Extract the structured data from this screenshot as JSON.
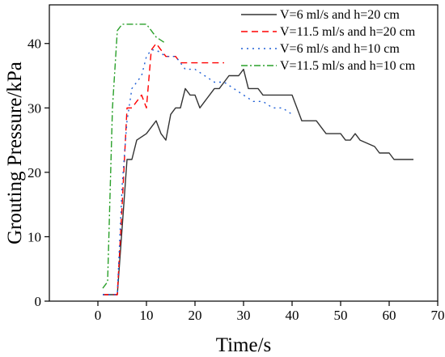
{
  "chart_data": {
    "type": "line",
    "xlabel": "Time/s",
    "ylabel": "Grouting Pressure/kPa",
    "xlim": [
      -10,
      70
    ],
    "ylim": [
      0,
      46
    ],
    "xticks": [
      0,
      10,
      20,
      30,
      40,
      50,
      60,
      70
    ],
    "yticks": [
      0,
      10,
      20,
      30,
      40
    ],
    "grid": false,
    "legend_position": "top-right",
    "series": [
      {
        "name": "V=6 ml/s and h=20 cm",
        "color": "#333333",
        "dash": "solid",
        "x": [
          1,
          4,
          6,
          7,
          8,
          10,
          12,
          13,
          14,
          15,
          16,
          17,
          18,
          19,
          20,
          21,
          24,
          25,
          26,
          27,
          28,
          29,
          30,
          31,
          33,
          34,
          35,
          40,
          41,
          42,
          45,
          46,
          47,
          48,
          50,
          51,
          52,
          53,
          54,
          57,
          58,
          59,
          60,
          61,
          65
        ],
        "y": [
          1,
          1,
          22,
          22,
          25,
          26,
          28,
          26,
          25,
          29,
          30,
          30,
          33,
          32,
          32,
          30,
          33,
          33,
          34,
          35,
          35,
          35,
          36,
          33,
          33,
          32,
          32,
          32,
          30,
          28,
          28,
          27,
          26,
          26,
          26,
          25,
          25,
          26,
          25,
          24,
          23,
          23,
          23,
          22,
          22
        ]
      },
      {
        "name": "V=11.5 ml/s and h=20 cm",
        "color": "#ff0000",
        "dash": "dashed",
        "x": [
          1,
          4,
          5,
          6,
          7,
          8,
          9,
          10,
          11,
          12,
          13,
          14,
          15,
          16,
          17,
          18,
          19,
          20,
          26
        ],
        "y": [
          1,
          1,
          15,
          30,
          30,
          31,
          32,
          30,
          39,
          40,
          39,
          38,
          38,
          38,
          37,
          37,
          37,
          37,
          37
        ]
      },
      {
        "name": "V=6 ml/s and h=10 cm",
        "color": "#1f5fd6",
        "dash": "dotted",
        "x": [
          1,
          4,
          5,
          6,
          7,
          8,
          9,
          10,
          11,
          12,
          14,
          16,
          18,
          20,
          22,
          24,
          26,
          28,
          30,
          32,
          34,
          36,
          38,
          40
        ],
        "y": [
          1,
          1,
          18,
          28,
          33,
          34,
          35,
          38,
          39,
          39,
          38,
          38,
          36,
          36,
          35,
          34,
          34,
          33,
          32,
          31,
          31,
          30,
          30,
          29
        ]
      },
      {
        "name": "V=11.5 ml/s and h=10 cm",
        "color": "#2aa02a",
        "dash": "dashdot",
        "x": [
          1,
          2,
          3,
          4,
          5,
          6,
          8,
          10,
          11,
          12,
          14
        ],
        "y": [
          2,
          3,
          30,
          42,
          43,
          43,
          43,
          43,
          42,
          41,
          40
        ]
      }
    ]
  }
}
